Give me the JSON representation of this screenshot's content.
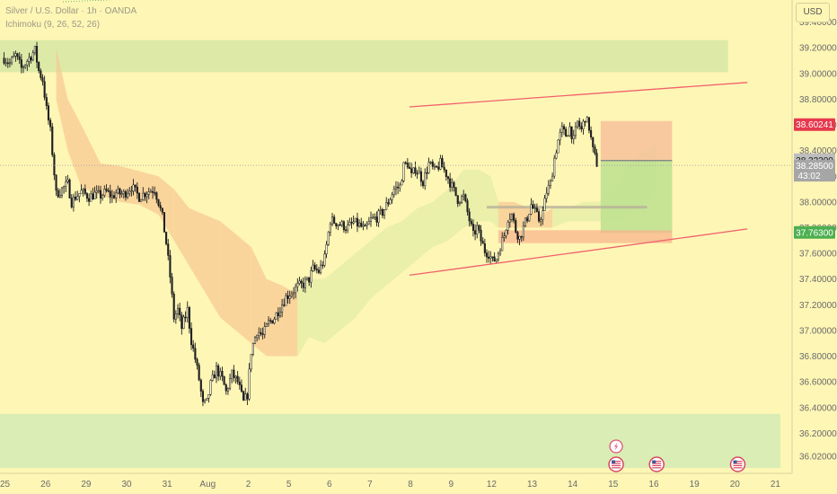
{
  "legend": {
    "symbol": "Silver / U.S. Dollar · 1h · OANDA",
    "indicator": "Ichimoku (9, 26, 52, 26)"
  },
  "currency": "USD",
  "price_labels": {
    "target": "38.60241",
    "current": "38.32200",
    "countdown_price": "38.28500",
    "countdown": "43:02",
    "stop": "37.76300"
  },
  "colors": {
    "background": "#fef6b5",
    "candle": "#1f1f1f",
    "channel": "#f0616d",
    "supply_zone": "#d7e8a4",
    "demand_zone": "#d2ebb4",
    "cloud_bear": "#f7c891",
    "cloud_bull": "#e3eca6",
    "target_box": "#f6be9a",
    "stop_box": "#bde08f",
    "label_red": "#e6394d",
    "label_green": "#4caf50",
    "label_gray": "#9a9a9a"
  },
  "chart_data": {
    "type": "candlestick",
    "instrument": "Silver / U.S. Dollar",
    "interval": "1h",
    "source": "OANDA",
    "ylim": [
      35.93,
      39.53
    ],
    "y_ticks": [
      "39.40000",
      "39.20000",
      "39.00000",
      "38.80000",
      "38.60000",
      "38.40000",
      "38.20000",
      "38.00000",
      "37.80000",
      "37.60000",
      "37.40000",
      "37.20000",
      "37.00000",
      "36.80000",
      "36.60000",
      "36.40000",
      "36.20000",
      "36.02000"
    ],
    "x_ticks": [
      {
        "label": "25",
        "t": 0.5
      },
      {
        "label": "26",
        "t": 21.5
      },
      {
        "label": "29",
        "t": 42.5
      },
      {
        "label": "30",
        "t": 63.5
      },
      {
        "label": "31",
        "t": 84.5
      },
      {
        "label": "Aug",
        "t": 105.5
      },
      {
        "label": "2",
        "t": 126.5
      },
      {
        "label": "5",
        "t": 147.5
      },
      {
        "label": "6",
        "t": 168.5
      },
      {
        "label": "7",
        "t": 189.5
      },
      {
        "label": "8",
        "t": 210.5
      },
      {
        "label": "9",
        "t": 231.5
      },
      {
        "label": "12",
        "t": 252.5
      },
      {
        "label": "13",
        "t": 273.5
      },
      {
        "label": "14",
        "t": 294.5
      },
      {
        "label": "15",
        "t": 315.5
      },
      {
        "label": "16",
        "t": 336.5
      },
      {
        "label": "19",
        "t": 357.5
      },
      {
        "label": "20",
        "t": 378.5
      },
      {
        "label": "21",
        "t": 399.5
      }
    ],
    "anchors": [
      [
        0,
        39.12
      ],
      [
        3,
        39.08
      ],
      [
        6,
        39.14
      ],
      [
        9,
        39.04
      ],
      [
        12,
        39.1
      ],
      [
        16,
        39.18
      ],
      [
        18,
        39.02
      ],
      [
        20,
        38.95
      ],
      [
        22,
        38.72
      ],
      [
        24,
        38.55
      ],
      [
        27,
        38.06
      ],
      [
        30,
        38.1
      ],
      [
        33,
        38.14
      ],
      [
        35,
        38.0
      ],
      [
        37,
        38.04
      ],
      [
        40,
        38.08
      ],
      [
        44,
        38.04
      ],
      [
        47,
        38.06
      ],
      [
        50,
        38.05
      ],
      [
        53,
        38.08
      ],
      [
        56,
        38.04
      ],
      [
        58,
        38.07
      ],
      [
        62,
        38.06
      ],
      [
        66,
        38.12
      ],
      [
        70,
        38.04
      ],
      [
        74,
        38.08
      ],
      [
        78,
        38.1
      ],
      [
        80,
        38.0
      ],
      [
        82,
        37.88
      ],
      [
        84,
        37.68
      ],
      [
        86,
        37.42
      ],
      [
        88,
        37.1
      ],
      [
        90,
        37.16
      ],
      [
        92,
        37.02
      ],
      [
        95,
        37.16
      ],
      [
        97,
        36.92
      ],
      [
        99,
        36.78
      ],
      [
        101,
        36.62
      ],
      [
        103,
        36.42
      ],
      [
        105,
        36.44
      ],
      [
        107,
        36.58
      ],
      [
        110,
        36.7
      ],
      [
        113,
        36.62
      ],
      [
        115,
        36.52
      ],
      [
        118,
        36.66
      ],
      [
        121,
        36.6
      ],
      [
        124,
        36.44
      ],
      [
        126,
        36.5
      ],
      [
        128,
        36.84
      ],
      [
        131,
        37.0
      ],
      [
        134,
        36.96
      ],
      [
        137,
        37.06
      ],
      [
        140,
        37.1
      ],
      [
        143,
        37.18
      ],
      [
        146,
        37.26
      ],
      [
        149,
        37.3
      ],
      [
        152,
        37.34
      ],
      [
        155,
        37.36
      ],
      [
        158,
        37.4
      ],
      [
        160,
        37.48
      ],
      [
        163,
        37.46
      ],
      [
        166,
        37.56
      ],
      [
        169,
        37.86
      ],
      [
        172,
        37.84
      ],
      [
        175,
        37.82
      ],
      [
        178,
        37.8
      ],
      [
        181,
        37.84
      ],
      [
        184,
        37.82
      ],
      [
        187,
        37.78
      ],
      [
        190,
        37.86
      ],
      [
        193,
        37.88
      ],
      [
        196,
        37.92
      ],
      [
        199,
        38.0
      ],
      [
        202,
        38.1
      ],
      [
        205,
        38.12
      ],
      [
        207,
        38.28
      ],
      [
        209,
        38.3
      ],
      [
        211,
        38.2
      ],
      [
        213,
        38.26
      ],
      [
        215,
        38.22
      ],
      [
        217,
        38.16
      ],
      [
        220,
        38.3
      ],
      [
        223,
        38.24
      ],
      [
        226,
        38.3
      ],
      [
        229,
        38.22
      ],
      [
        232,
        38.12
      ],
      [
        235,
        38.02
      ],
      [
        238,
        38.04
      ],
      [
        241,
        37.86
      ],
      [
        243,
        37.74
      ],
      [
        245,
        37.8
      ],
      [
        247,
        37.7
      ],
      [
        249,
        37.62
      ],
      [
        251,
        37.6
      ],
      [
        253,
        37.54
      ],
      [
        255,
        37.56
      ],
      [
        257,
        37.66
      ],
      [
        259,
        37.74
      ],
      [
        261,
        37.88
      ],
      [
        263,
        37.9
      ],
      [
        265,
        37.78
      ],
      [
        267,
        37.72
      ],
      [
        269,
        37.8
      ],
      [
        271,
        37.88
      ],
      [
        273,
        37.98
      ],
      [
        275,
        37.92
      ],
      [
        277,
        37.86
      ],
      [
        279,
        37.92
      ],
      [
        281,
        38.08
      ],
      [
        283,
        38.14
      ],
      [
        285,
        38.34
      ],
      [
        287,
        38.48
      ],
      [
        289,
        38.56
      ],
      [
        291,
        38.52
      ],
      [
        293,
        38.58
      ],
      [
        295,
        38.48
      ],
      [
        297,
        38.62
      ],
      [
        299,
        38.56
      ],
      [
        301,
        38.66
      ],
      [
        303,
        38.58
      ],
      [
        305,
        38.4
      ],
      [
        307,
        38.3
      ]
    ]
  },
  "drawings": {
    "channel_upper": [
      [
        210,
        38.74
      ],
      [
        385,
        38.93
      ]
    ],
    "channel_lower": [
      [
        210,
        37.43
      ],
      [
        385,
        37.79
      ]
    ],
    "supply_zone": {
      "t1": -3,
      "t2": 375,
      "y1": 39.26,
      "y2": 39.01
    },
    "demand_zone": {
      "t1": -3,
      "t2": 402,
      "y1": 36.35,
      "y2": 35.93
    },
    "target_box": {
      "t1": 309,
      "t2": 346,
      "y1": 38.63,
      "y2": 38.32
    },
    "stop_box": {
      "t1": 309,
      "t2": 346,
      "y1": 38.32,
      "y2": 37.76
    },
    "target_level": 38.60241,
    "entry_level": 38.322,
    "stop_level": 37.763,
    "current_price": 38.285,
    "cloud": [
      [
        27,
        39.2,
        38.8,
        "bear"
      ],
      [
        33,
        38.8,
        38.4,
        "bear"
      ],
      [
        40,
        38.6,
        38.12,
        "bear"
      ],
      [
        50,
        38.3,
        38.05,
        "bear"
      ],
      [
        60,
        38.28,
        38.0,
        "bear"
      ],
      [
        70,
        38.24,
        37.98,
        "bear"
      ],
      [
        80,
        38.2,
        37.9,
        "bear"
      ],
      [
        88,
        38.1,
        37.7,
        "bear"
      ],
      [
        96,
        37.95,
        37.5,
        "bear"
      ],
      [
        104,
        37.9,
        37.3,
        "bear"
      ],
      [
        112,
        37.85,
        37.1,
        "bear"
      ],
      [
        120,
        37.75,
        37.0,
        "bear"
      ],
      [
        128,
        37.65,
        36.9,
        "bear"
      ],
      [
        136,
        37.4,
        36.8,
        "bear"
      ],
      [
        144,
        37.35,
        36.8,
        "bear"
      ],
      [
        150,
        37.3,
        36.8,
        "bear"
      ],
      [
        152,
        37.3,
        36.8,
        "bull"
      ],
      [
        158,
        37.4,
        36.95,
        "bull"
      ],
      [
        166,
        37.4,
        36.9,
        "bull"
      ],
      [
        174,
        37.5,
        37.0,
        "bull"
      ],
      [
        182,
        37.6,
        37.1,
        "bull"
      ],
      [
        190,
        37.7,
        37.25,
        "bull"
      ],
      [
        198,
        37.8,
        37.35,
        "bull"
      ],
      [
        206,
        37.85,
        37.45,
        "bull"
      ],
      [
        214,
        37.95,
        37.55,
        "bull"
      ],
      [
        222,
        38.0,
        37.65,
        "bull"
      ],
      [
        230,
        38.1,
        37.7,
        "bull"
      ],
      [
        238,
        38.25,
        37.8,
        "bull"
      ],
      [
        246,
        38.25,
        37.85,
        "bull"
      ],
      [
        252,
        38.2,
        37.85,
        "bull"
      ],
      [
        256,
        38.0,
        37.8,
        "bear"
      ],
      [
        264,
        38.0,
        37.8,
        "bear"
      ],
      [
        272,
        37.95,
        37.8,
        "bear"
      ],
      [
        278,
        37.9,
        37.8,
        "bear"
      ],
      [
        284,
        37.95,
        37.8,
        "bull"
      ],
      [
        292,
        37.95,
        37.85,
        "bull"
      ],
      [
        300,
        38.0,
        37.85,
        "bull"
      ],
      [
        308,
        38.0,
        37.85,
        "bull"
      ],
      [
        316,
        38.1,
        37.85,
        "bull"
      ],
      [
        324,
        38.3,
        37.9,
        "bull"
      ],
      [
        332,
        38.4,
        38.0,
        "bull"
      ],
      [
        338,
        38.45,
        38.1,
        "bull"
      ]
    ]
  },
  "event_icons": [
    {
      "name": "flash-event-icon",
      "t": 317,
      "kind": "flash"
    },
    {
      "name": "us-flag-event-icon-1",
      "t": 317,
      "kind": "flag"
    },
    {
      "name": "us-flag-event-icon-2",
      "t": 338,
      "kind": "flag"
    },
    {
      "name": "us-flag-event-icon-3",
      "t": 380,
      "kind": "flag"
    }
  ]
}
